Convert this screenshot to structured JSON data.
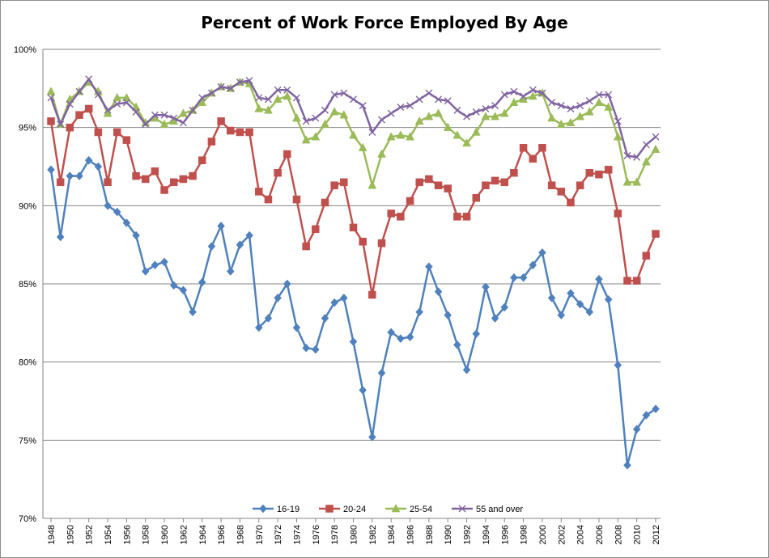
{
  "chart_data": {
    "type": "line",
    "title": "Percent of Work Force Employed By Age",
    "xlabel": "",
    "ylabel": "",
    "ylim": [
      70,
      100
    ],
    "y_ticks": [
      "70%",
      "75%",
      "80%",
      "85%",
      "90%",
      "95%",
      "100%"
    ],
    "y_tick_values": [
      70,
      75,
      80,
      85,
      90,
      95,
      100
    ],
    "x_tick_labels": [
      "1948",
      "1950",
      "1952",
      "1954",
      "1956",
      "1958",
      "1960",
      "1962",
      "1964",
      "1966",
      "1968",
      "1970",
      "1972",
      "1974",
      "1976",
      "1978",
      "1980",
      "1982",
      "1984",
      "1986",
      "1988",
      "1990",
      "1992",
      "1994",
      "1996",
      "1998",
      "2000",
      "2002",
      "2004",
      "2006",
      "2008",
      "2010",
      "2012"
    ],
    "x": [
      1948,
      1949,
      1950,
      1951,
      1952,
      1953,
      1954,
      1955,
      1956,
      1957,
      1958,
      1959,
      1960,
      1961,
      1962,
      1963,
      1964,
      1965,
      1966,
      1967,
      1968,
      1969,
      1970,
      1971,
      1972,
      1973,
      1974,
      1975,
      1976,
      1977,
      1978,
      1979,
      1980,
      1981,
      1982,
      1983,
      1984,
      1985,
      1986,
      1987,
      1988,
      1989,
      1990,
      1991,
      1992,
      1993,
      1994,
      1995,
      1996,
      1997,
      1998,
      1999,
      2000,
      2001,
      2002,
      2003,
      2004,
      2005,
      2006,
      2007,
      2008,
      2009,
      2010,
      2011,
      2012
    ],
    "grid": true,
    "legend_position": "bottom",
    "series": [
      {
        "name": "16-19",
        "color": "#4f81bd",
        "marker": "diamond",
        "values": [
          92.3,
          88.0,
          91.9,
          91.9,
          92.9,
          92.5,
          90.0,
          89.6,
          88.9,
          88.1,
          85.8,
          86.2,
          86.4,
          84.9,
          84.6,
          83.2,
          85.1,
          87.4,
          88.7,
          85.8,
          87.5,
          88.1,
          82.2,
          82.8,
          84.1,
          85.0,
          82.2,
          80.9,
          80.8,
          82.8,
          83.8,
          84.1,
          81.3,
          78.2,
          75.2,
          79.3,
          81.9,
          81.5,
          81.6,
          83.2,
          86.1,
          84.5,
          83.0,
          81.1,
          79.5,
          81.8,
          84.8,
          82.8,
          83.5,
          85.4,
          85.4,
          86.2,
          87.0,
          84.1,
          83.0,
          84.4,
          83.7,
          83.2,
          85.3,
          84.0,
          79.8,
          73.4,
          75.7,
          76.6,
          77.0
        ]
      },
      {
        "name": "20-24",
        "color": "#c0504d",
        "marker": "square",
        "values": [
          95.4,
          91.5,
          95.0,
          95.8,
          96.2,
          94.7,
          91.5,
          94.7,
          94.2,
          91.9,
          91.7,
          92.2,
          91.0,
          91.5,
          91.7,
          91.9,
          92.9,
          94.1,
          95.4,
          94.8,
          94.7,
          94.7,
          90.9,
          90.4,
          92.1,
          93.3,
          90.4,
          87.4,
          88.5,
          90.2,
          91.3,
          91.5,
          88.6,
          87.7,
          84.3,
          87.6,
          89.5,
          89.3,
          90.3,
          91.5,
          91.7,
          91.3,
          91.1,
          89.3,
          89.3,
          90.5,
          91.3,
          91.6,
          91.5,
          92.1,
          93.7,
          93.0,
          93.7,
          91.3,
          90.9,
          90.2,
          91.3,
          92.1,
          92.0,
          92.3,
          89.5,
          85.2,
          85.2,
          86.8,
          88.2
        ]
      },
      {
        "name": "25-54",
        "color": "#9bbb59",
        "marker": "triangle",
        "values": [
          97.3,
          95.2,
          96.8,
          97.3,
          97.9,
          97.3,
          95.9,
          96.9,
          96.9,
          96.3,
          95.3,
          95.6,
          95.2,
          95.4,
          95.9,
          96.1,
          96.6,
          97.2,
          97.6,
          97.5,
          97.9,
          97.8,
          96.2,
          96.1,
          96.8,
          97.0,
          95.6,
          94.2,
          94.4,
          95.2,
          96.0,
          95.8,
          94.5,
          93.7,
          91.3,
          93.3,
          94.4,
          94.5,
          94.4,
          95.4,
          95.7,
          95.9,
          95.0,
          94.5,
          94.0,
          94.7,
          95.7,
          95.7,
          95.9,
          96.6,
          96.8,
          97.0,
          97.2,
          95.6,
          95.2,
          95.3,
          95.7,
          96.0,
          96.6,
          96.3,
          94.4,
          91.5,
          91.5,
          92.8,
          93.6
        ]
      },
      {
        "name": "55 and over",
        "color": "#8064a2",
        "marker": "x",
        "values": [
          96.9,
          95.2,
          96.5,
          97.3,
          98.1,
          97.1,
          96.1,
          96.5,
          96.6,
          96.0,
          95.2,
          95.8,
          95.8,
          95.6,
          95.3,
          96.1,
          96.9,
          97.2,
          97.6,
          97.5,
          97.9,
          98.0,
          96.9,
          96.8,
          97.4,
          97.4,
          96.9,
          95.4,
          95.6,
          96.1,
          97.1,
          97.2,
          96.8,
          96.4,
          94.7,
          95.5,
          95.9,
          96.3,
          96.4,
          96.8,
          97.2,
          96.8,
          96.7,
          96.1,
          95.7,
          96.0,
          96.2,
          96.4,
          97.1,
          97.3,
          97.0,
          97.4,
          97.2,
          96.6,
          96.4,
          96.2,
          96.4,
          96.7,
          97.1,
          97.1,
          95.4,
          93.2,
          93.1,
          93.9,
          94.4
        ]
      }
    ]
  }
}
